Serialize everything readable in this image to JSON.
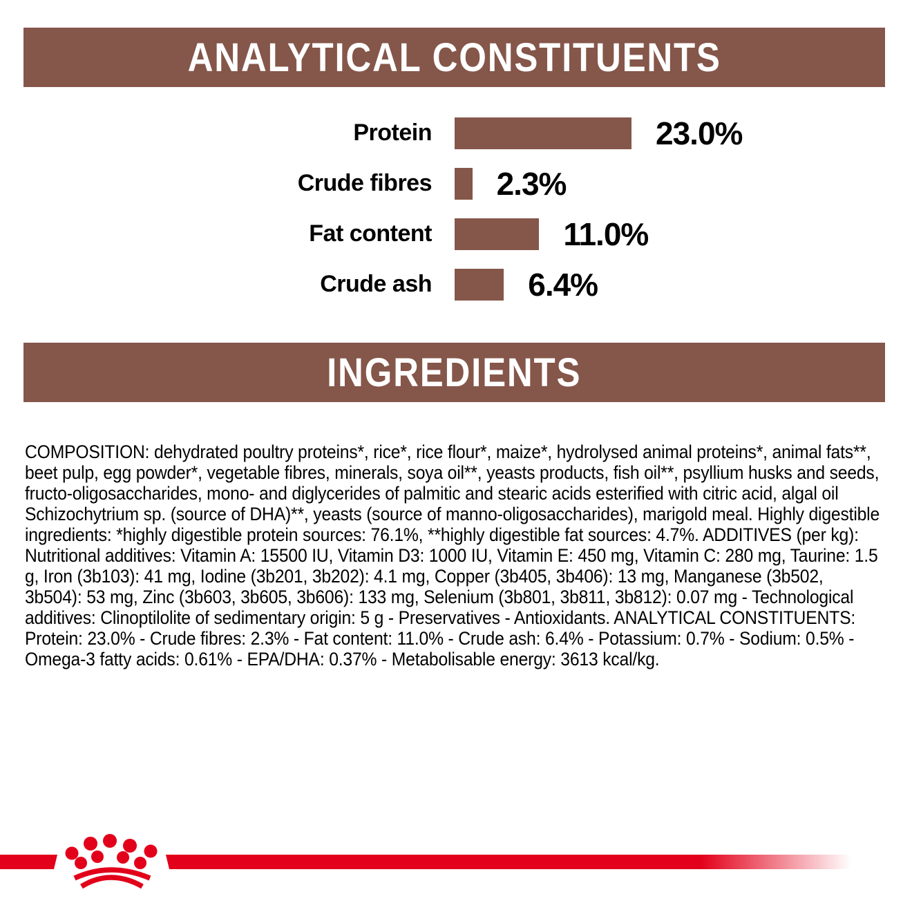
{
  "sections": {
    "analytical": {
      "title": "ANALYTICAL CONSTITUENTS"
    },
    "ingredients": {
      "title": "INGREDIENTS"
    }
  },
  "chart_data": {
    "type": "bar",
    "orientation": "horizontal",
    "title": "ANALYTICAL CONSTITUENTS",
    "categories": [
      "Protein",
      "Crude fibres",
      "Fat content",
      "Crude ash"
    ],
    "values": [
      23.0,
      2.3,
      11.0,
      6.4
    ],
    "value_labels": [
      "23.0%",
      "2.3%",
      "11.0%",
      "6.4%"
    ],
    "unit": "percent",
    "xlim": [
      0,
      23
    ],
    "grid": false,
    "legend": false,
    "bar_color": "#85564A"
  },
  "composition": {
    "text": "COMPOSITION: dehydrated poultry proteins*, rice*, rice flour*, maize*, hydrolysed animal proteins*, animal fats**, beet pulp, egg powder*, vegetable fibres, minerals, soya oil**, yeasts products, fish oil**, psyllium husks and seeds, fructo-oligosaccharides, mono- and diglycerides of palmitic and stearic acids esterified with citric acid, algal oil Schizochytrium sp. (source of DHA)**, yeasts (source of manno-oligosaccharides), marigold meal. Highly digestible ingredients: *highly digestible protein sources: 76.1%, **highly digestible fat sources: 4.7%. ADDITIVES (per kg): Nutritional additives: Vitamin A: 15500 IU, Vitamin D3: 1000 IU, Vitamin E: 450 mg, Vitamin C: 280 mg, Taurine: 1.5 g, Iron (3b103): 41 mg, Iodine (3b201, 3b202): 4.1 mg, Copper (3b405, 3b406): 13 mg, Manganese (3b502, 3b504): 53 mg, Zinc (3b603, 3b605, 3b606): 133 mg, Selenium (3b801, 3b811, 3b812): 0.07 mg - Technological additives: Clinoptilolite of sedimentary origin: 5 g - Preservatives - Antioxidants. ANALYTICAL CONSTITUENTS: Protein: 23.0% - Crude fibres: 2.3% - Fat content: 11.0% - Crude ash: 6.4% - Potassium: 0.7% - Sodium: 0.5% - Omega-3 fatty acids: 0.61% - EPA/DHA: 0.37% - Metabolisable energy: 3613 kcal/kg."
  },
  "footer": {
    "logo": "royal-canin-crown",
    "divider_color": "#E2001A"
  },
  "colors": {
    "banner_bg": "#85564A",
    "banner_text": "#FFFFFF",
    "bar_fill": "#85564A",
    "body_text": "#000000",
    "accent_red": "#E2001A"
  }
}
